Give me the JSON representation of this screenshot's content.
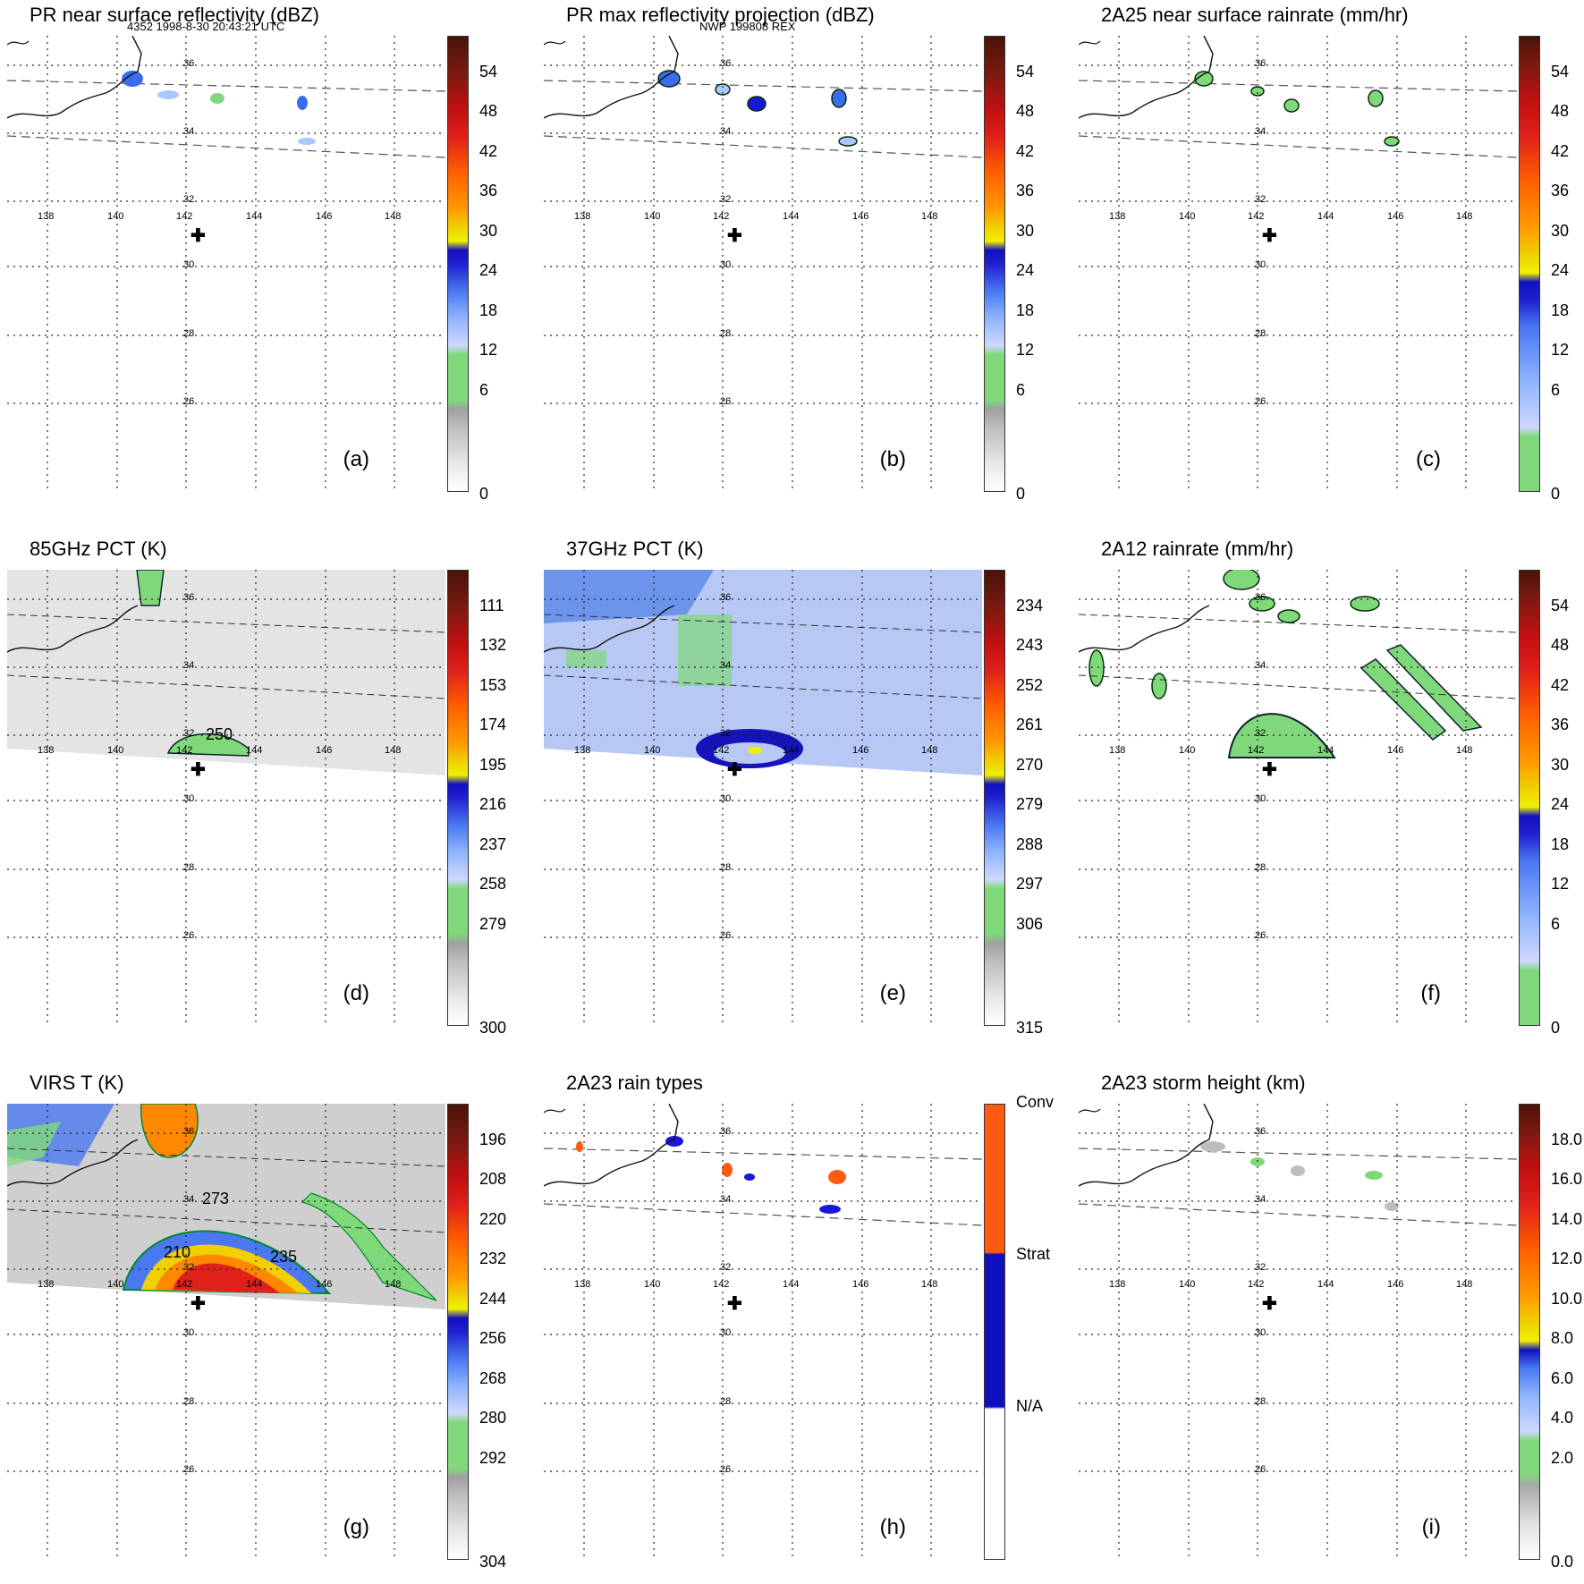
{
  "header": {
    "orbit_label": "4352 1998-8-30 20:43:21 UTC",
    "model_label": "NWP 199808 REX"
  },
  "grid": {
    "lat_labels": [
      "36",
      "34",
      "32",
      "30",
      "28",
      "26"
    ],
    "lon_labels": [
      "138",
      "140",
      "142",
      "144",
      "146",
      "148"
    ],
    "center_marker": "✚"
  },
  "colors": {
    "green": "#7fd97a",
    "blue_light": "#a8c8ff",
    "blue": "#3a6cf0",
    "blue_dark": "#1818d8",
    "yellow": "#f0f000",
    "orange": "#ff8800",
    "red": "#e0201a",
    "dark_red": "#5a1a10",
    "gray": "#bdbdbd",
    "white": "#ffffff"
  },
  "panels": [
    {
      "id": "a",
      "title": "PR near surface reflectivity (dBZ)",
      "letter": "(a)",
      "colorbar": [
        "54",
        "48",
        "42",
        "36",
        "30",
        "24",
        "18",
        "12",
        "6",
        "0"
      ]
    },
    {
      "id": "b",
      "title": "PR max reflectivity projection (dBZ)",
      "letter": "(b)",
      "colorbar": [
        "54",
        "48",
        "42",
        "36",
        "30",
        "24",
        "18",
        "12",
        "6",
        "0"
      ]
    },
    {
      "id": "c",
      "title": "2A25 near surface rainrate (mm/hr)",
      "letter": "(c)",
      "colorbar": [
        "54",
        "48",
        "42",
        "36",
        "30",
        "24",
        "18",
        "12",
        "6",
        "0"
      ]
    },
    {
      "id": "d",
      "title": "85GHz PCT (K)",
      "letter": "(d)",
      "contour_label": "250",
      "colorbar": [
        "111",
        "132",
        "153",
        "174",
        "195",
        "216",
        "237",
        "258",
        "279",
        "300"
      ]
    },
    {
      "id": "e",
      "title": "37GHz PCT (K)",
      "letter": "(e)",
      "colorbar": [
        "234",
        "243",
        "252",
        "261",
        "270",
        "279",
        "288",
        "297",
        "306",
        "315"
      ]
    },
    {
      "id": "f",
      "title": "2A12 rainrate (mm/hr)",
      "letter": "(f)",
      "colorbar": [
        "54",
        "48",
        "42",
        "36",
        "30",
        "24",
        "18",
        "12",
        "6",
        "0"
      ]
    },
    {
      "id": "g",
      "title": "VIRS T (K)",
      "letter": "(g)",
      "contour_labels": [
        "273",
        "210",
        "235"
      ],
      "colorbar": [
        "196",
        "208",
        "220",
        "232",
        "244",
        "256",
        "268",
        "280",
        "292",
        "304"
      ]
    },
    {
      "id": "h",
      "title": "2A23 rain types",
      "letter": "(h)",
      "colorbar": [
        "Conv",
        "Strat",
        "N/A"
      ]
    },
    {
      "id": "i",
      "title": "2A23 storm height (km)",
      "letter": "(i)",
      "colorbar": [
        "18.0",
        "16.0",
        "14.0",
        "12.0",
        "10.0",
        "8.0",
        "6.0",
        "4.0",
        "2.0",
        "0.0"
      ]
    }
  ]
}
